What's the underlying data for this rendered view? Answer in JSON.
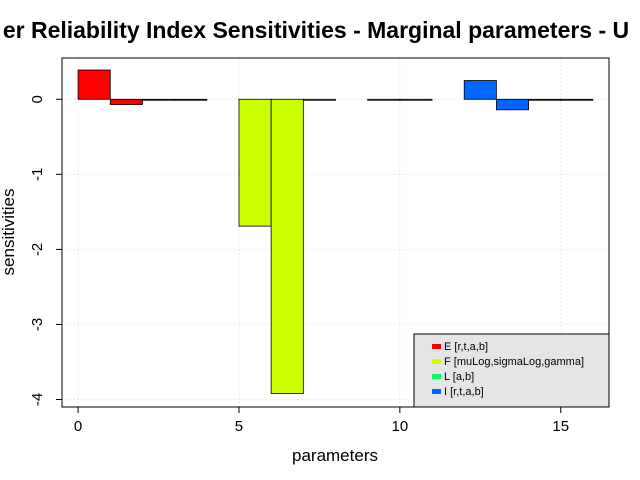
{
  "chart_data": {
    "type": "bar",
    "title": "er Reliability Index Sensitivities - Marginal parameters - U",
    "xlabel": "parameters",
    "ylabel": "sensitivities",
    "xlim": [
      -0.5,
      16.5
    ],
    "ylim": [
      -4.1,
      0.55
    ],
    "x_ticks": [
      0,
      5,
      10,
      15
    ],
    "y_ticks": [
      0,
      -1,
      -2,
      -3,
      -4
    ],
    "grid": true,
    "legend_position": "bottom-right",
    "series": [
      {
        "name": "E [r,t,a,b]",
        "color": "#ff0000",
        "bars": [
          {
            "x0": 0,
            "x1": 1,
            "value": 0.39
          },
          {
            "x0": 1,
            "x1": 2,
            "value": -0.07
          },
          {
            "x0": 2,
            "x1": 3,
            "value": 0.0
          },
          {
            "x0": 3,
            "x1": 4,
            "value": 0.0
          }
        ]
      },
      {
        "name": "F [muLog,sigmaLog,gamma]",
        "color": "#ccff00",
        "bars": [
          {
            "x0": 5,
            "x1": 6,
            "value": -1.69
          },
          {
            "x0": 6,
            "x1": 7,
            "value": -3.92
          },
          {
            "x0": 7,
            "x1": 8,
            "value": 0.0
          }
        ]
      },
      {
        "name": "L [a,b]",
        "color": "#00ff66",
        "bars": [
          {
            "x0": 9,
            "x1": 10,
            "value": -0.01
          },
          {
            "x0": 10,
            "x1": 11,
            "value": -0.01
          }
        ]
      },
      {
        "name": "I [r,t,a,b]",
        "color": "#0066ff",
        "bars": [
          {
            "x0": 12,
            "x1": 13,
            "value": 0.25
          },
          {
            "x0": 13,
            "x1": 14,
            "value": -0.14
          },
          {
            "x0": 14,
            "x1": 15,
            "value": 0.0
          },
          {
            "x0": 15,
            "x1": 16,
            "value": 0.0
          }
        ]
      }
    ]
  },
  "colors": {
    "legend_bg": "#e5e5e5",
    "grid": "#d9d9d9"
  }
}
